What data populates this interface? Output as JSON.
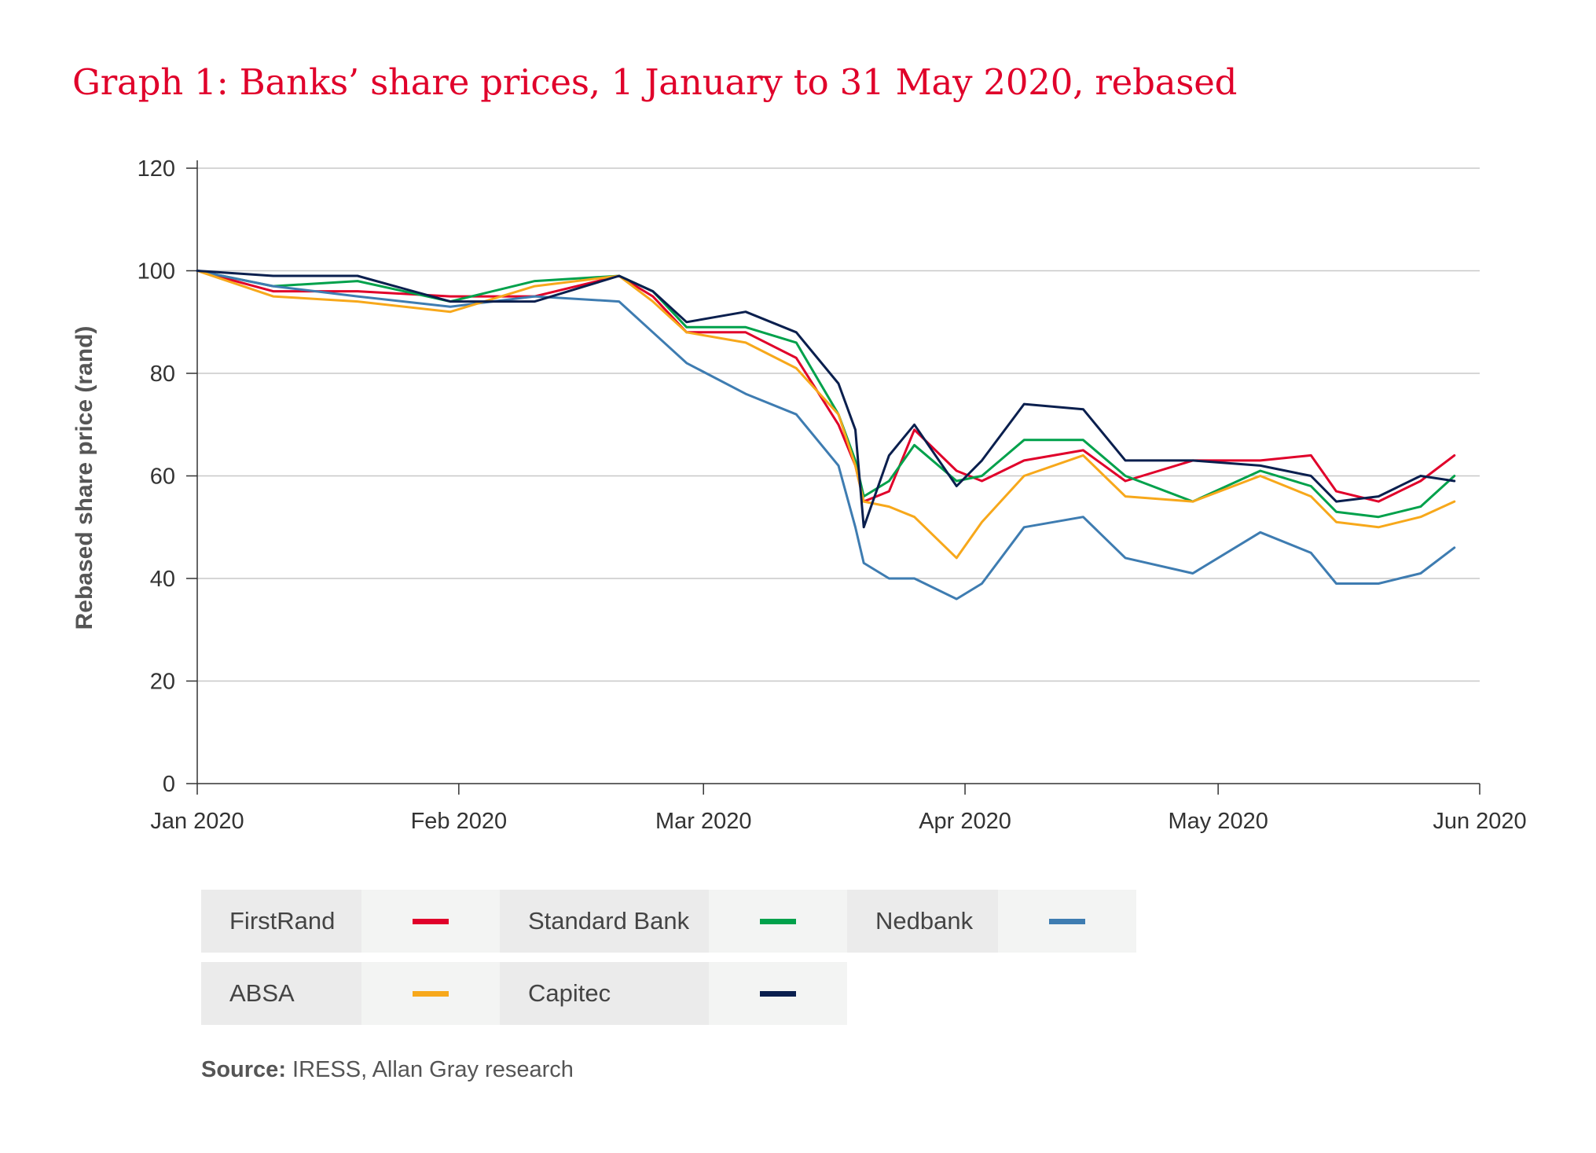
{
  "chart_data": {
    "type": "line",
    "title": "Graph 1: Banks’ share prices, 1 January to 31 May 2020, rebased",
    "xlabel": "",
    "ylabel": "Rebased share price (rand)",
    "xlim": [
      "2020-01-01",
      "2020-06-01"
    ],
    "ylim": [
      0,
      120
    ],
    "x_ticks": [
      {
        "date": "2020-01-01",
        "label": "Jan 2020"
      },
      {
        "date": "2020-02-01",
        "label": "Feb 2020"
      },
      {
        "date": "2020-03-01",
        "label": "Mar 2020"
      },
      {
        "date": "2020-04-01",
        "label": "Apr 2020"
      },
      {
        "date": "2020-05-01",
        "label": "May 2020"
      },
      {
        "date": "2020-06-01",
        "label": "Jun 2020"
      }
    ],
    "y_ticks": [
      0,
      20,
      40,
      60,
      80,
      100,
      120
    ],
    "grid": "horizontal",
    "legend_position": "bottom",
    "x": [
      "2020-01-01",
      "2020-01-10",
      "2020-01-20",
      "2020-01-31",
      "2020-02-10",
      "2020-02-20",
      "2020-02-24",
      "2020-02-28",
      "2020-03-06",
      "2020-03-12",
      "2020-03-17",
      "2020-03-19",
      "2020-03-20",
      "2020-03-23",
      "2020-03-26",
      "2020-03-31",
      "2020-04-03",
      "2020-04-08",
      "2020-04-15",
      "2020-04-20",
      "2020-04-28",
      "2020-05-06",
      "2020-05-12",
      "2020-05-15",
      "2020-05-20",
      "2020-05-25",
      "2020-05-29"
    ],
    "series": [
      {
        "name": "FirstRand",
        "color": "#e0002a",
        "values": [
          100,
          96,
          96,
          95,
          95,
          99,
          95,
          88,
          88,
          83,
          70,
          62,
          55,
          57,
          69,
          61,
          59,
          63,
          65,
          59,
          63,
          63,
          64,
          57,
          55,
          59,
          64
        ]
      },
      {
        "name": "Standard Bank",
        "color": "#00a14b",
        "values": [
          100,
          97,
          98,
          94,
          98,
          99,
          96,
          89,
          89,
          86,
          72,
          63,
          56,
          59,
          66,
          59,
          60,
          67,
          67,
          60,
          55,
          61,
          58,
          53,
          52,
          54,
          60
        ]
      },
      {
        "name": "Nedbank",
        "color": "#3e7cb1",
        "values": [
          100,
          97,
          95,
          93,
          95,
          94,
          88,
          82,
          76,
          72,
          62,
          50,
          43,
          40,
          40,
          36,
          39,
          50,
          52,
          44,
          41,
          49,
          45,
          39,
          39,
          41,
          46
        ]
      },
      {
        "name": "ABSA",
        "color": "#f7a81b",
        "values": [
          100,
          95,
          94,
          92,
          97,
          99,
          94,
          88,
          86,
          81,
          72,
          62,
          55,
          54,
          52,
          44,
          51,
          60,
          64,
          56,
          55,
          60,
          56,
          51,
          50,
          52,
          55
        ]
      },
      {
        "name": "Capitec",
        "color": "#0a1f4e",
        "values": [
          100,
          99,
          99,
          94,
          94,
          99,
          96,
          90,
          92,
          88,
          78,
          69,
          50,
          64,
          70,
          58,
          63,
          74,
          73,
          63,
          63,
          62,
          60,
          55,
          56,
          60,
          59
        ]
      }
    ]
  },
  "legend": {
    "rows": [
      [
        {
          "label": "FirstRand",
          "color": "#e0002a"
        },
        {
          "label": "Standard Bank",
          "color": "#00a14b"
        },
        {
          "label": "Nedbank",
          "color": "#3e7cb1"
        }
      ],
      [
        {
          "label": "ABSA",
          "color": "#f7a81b"
        },
        {
          "label": "Capitec",
          "color": "#0a1f4e"
        }
      ]
    ]
  },
  "source": {
    "label": "Source:",
    "text": "IRESS, Allan Gray research"
  }
}
